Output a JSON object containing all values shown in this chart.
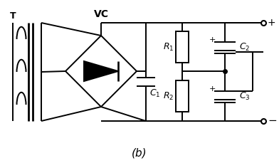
{
  "bg_color": "#ffffff",
  "line_color": "#000000",
  "lw": 1.4,
  "fig_width": 3.92,
  "fig_height": 2.36,
  "label_b": "(b)"
}
